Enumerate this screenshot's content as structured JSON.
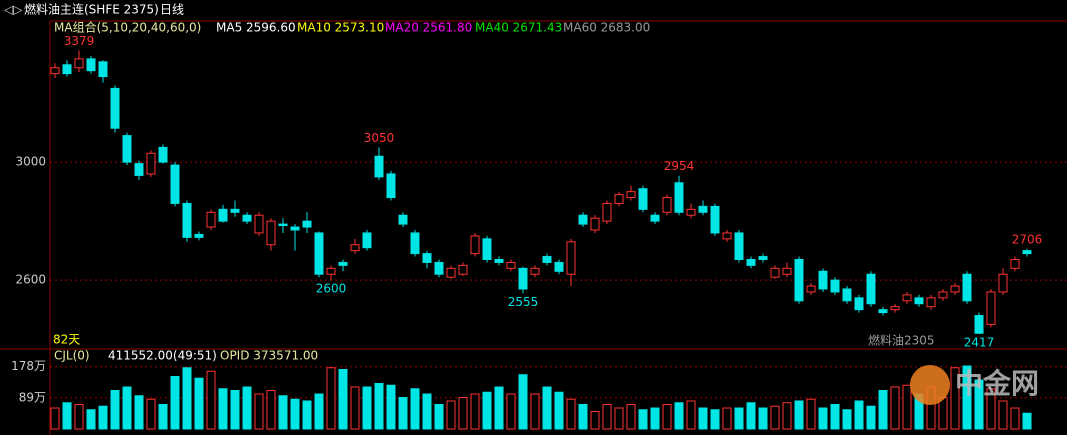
{
  "header": {
    "title": "燃料油主连(SHFE 2375)",
    "period": "日线",
    "ma_label": "MA组合(5,10,20,40,60,0)",
    "ma_values": [
      "MA5 2596.60",
      "MA10 2573.10",
      "MA20 2561.80",
      "MA40 2671.43",
      "MA60 2683.00"
    ],
    "days": "82天",
    "contract": "燃料油2305"
  },
  "watermark": "中金网",
  "chart_data": [
    {
      "type": "candlestick",
      "ylim": [
        2370,
        3475
      ],
      "yticks": [
        3000,
        2600
      ],
      "grid": true,
      "up_color": "#ff3232",
      "down_color": "#00e5e5",
      "annotations": [
        3379,
        3050,
        2954,
        2706,
        2600,
        2555,
        2417
      ],
      "open": [
        3300,
        3330,
        3320,
        3350,
        3340,
        3250,
        3090,
        2995,
        2960,
        3050,
        2990,
        2860,
        2755,
        2780,
        2840,
        2840,
        2820,
        2760,
        2720,
        2790,
        2780,
        2800,
        2760,
        2620,
        2660,
        2700,
        2760,
        3020,
        2960,
        2820,
        2760,
        2690,
        2660,
        2610,
        2620,
        2690,
        2740,
        2670,
        2640,
        2640,
        2620,
        2680,
        2660,
        2620,
        2820,
        2770,
        2800,
        2860,
        2880,
        2910,
        2820,
        2830,
        2930,
        2820,
        2850,
        2850,
        2740,
        2760,
        2670,
        2680,
        2610,
        2620,
        2670,
        2560,
        2630,
        2600,
        2570,
        2540,
        2620,
        2500,
        2500,
        2530,
        2540,
        2510,
        2540,
        2560,
        2620,
        2480,
        2450,
        2560,
        2640,
        2700
      ],
      "high": [
        3335,
        3345,
        3379,
        3360,
        3345,
        3260,
        3100,
        3005,
        3040,
        3060,
        3000,
        2870,
        2765,
        2840,
        2855,
        2870,
        2830,
        2830,
        2810,
        2810,
        2790,
        2830,
        2765,
        2650,
        2670,
        2740,
        2770,
        3050,
        2970,
        2830,
        2770,
        2700,
        2670,
        2650,
        2660,
        2760,
        2750,
        2680,
        2670,
        2645,
        2650,
        2690,
        2670,
        2740,
        2830,
        2820,
        2870,
        2900,
        2920,
        2920,
        2830,
        2890,
        2954,
        2860,
        2870,
        2860,
        2770,
        2770,
        2680,
        2690,
        2650,
        2660,
        2680,
        2590,
        2640,
        2610,
        2580,
        2550,
        2630,
        2510,
        2520,
        2560,
        2550,
        2550,
        2570,
        2590,
        2630,
        2490,
        2570,
        2640,
        2680,
        2706
      ],
      "low": [
        3285,
        3290,
        3305,
        3300,
        3270,
        3100,
        2990,
        2940,
        2950,
        2995,
        2850,
        2730,
        2735,
        2770,
        2795,
        2815,
        2790,
        2750,
        2700,
        2760,
        2700,
        2760,
        2610,
        2600,
        2630,
        2690,
        2700,
        2940,
        2870,
        2780,
        2680,
        2640,
        2610,
        2605,
        2615,
        2680,
        2660,
        2650,
        2630,
        2555,
        2610,
        2650,
        2620,
        2580,
        2780,
        2760,
        2790,
        2850,
        2870,
        2830,
        2790,
        2820,
        2820,
        2810,
        2820,
        2750,
        2730,
        2660,
        2640,
        2660,
        2605,
        2610,
        2520,
        2550,
        2560,
        2550,
        2520,
        2490,
        2510,
        2480,
        2490,
        2520,
        2510,
        2500,
        2530,
        2550,
        2520,
        2417,
        2440,
        2550,
        2630,
        2680
      ],
      "close": [
        3320,
        3300,
        3350,
        3310,
        3290,
        3115,
        3000,
        2955,
        3030,
        3000,
        2860,
        2745,
        2745,
        2830,
        2800,
        2830,
        2800,
        2820,
        2800,
        2785,
        2770,
        2780,
        2620,
        2640,
        2650,
        2720,
        2710,
        2950,
        2880,
        2790,
        2690,
        2660,
        2620,
        2640,
        2650,
        2750,
        2670,
        2660,
        2660,
        2570,
        2640,
        2660,
        2630,
        2730,
        2790,
        2810,
        2860,
        2890,
        2900,
        2840,
        2800,
        2880,
        2830,
        2840,
        2830,
        2760,
        2760,
        2670,
        2650,
        2670,
        2640,
        2640,
        2530,
        2580,
        2570,
        2560,
        2530,
        2500,
        2520,
        2490,
        2510,
        2550,
        2520,
        2540,
        2560,
        2580,
        2530,
        2420,
        2560,
        2620,
        2670,
        2690
      ]
    },
    {
      "type": "volume",
      "ylim": [
        0,
        220
      ],
      "yticks": [
        {
          "value": 178,
          "label": "178万"
        },
        {
          "value": 89,
          "label": "89万"
        }
      ],
      "label": "CJL(0)",
      "volume_text": "411552.00(49:51)",
      "opid_text": "OPID 373571.00",
      "values": [
        60,
        75,
        70,
        55,
        65,
        110,
        120,
        95,
        85,
        70,
        150,
        175,
        145,
        165,
        115,
        110,
        120,
        100,
        110,
        95,
        85,
        80,
        100,
        175,
        170,
        120,
        120,
        130,
        125,
        90,
        115,
        100,
        70,
        80,
        90,
        100,
        105,
        120,
        100,
        155,
        100,
        120,
        105,
        85,
        70,
        50,
        70,
        60,
        70,
        55,
        60,
        70,
        75,
        80,
        60,
        55,
        60,
        60,
        75,
        60,
        65,
        75,
        80,
        85,
        60,
        70,
        55,
        80,
        65,
        110,
        120,
        125,
        100,
        120,
        90,
        175,
        180,
        140,
        115,
        80,
        60,
        45
      ]
    }
  ]
}
